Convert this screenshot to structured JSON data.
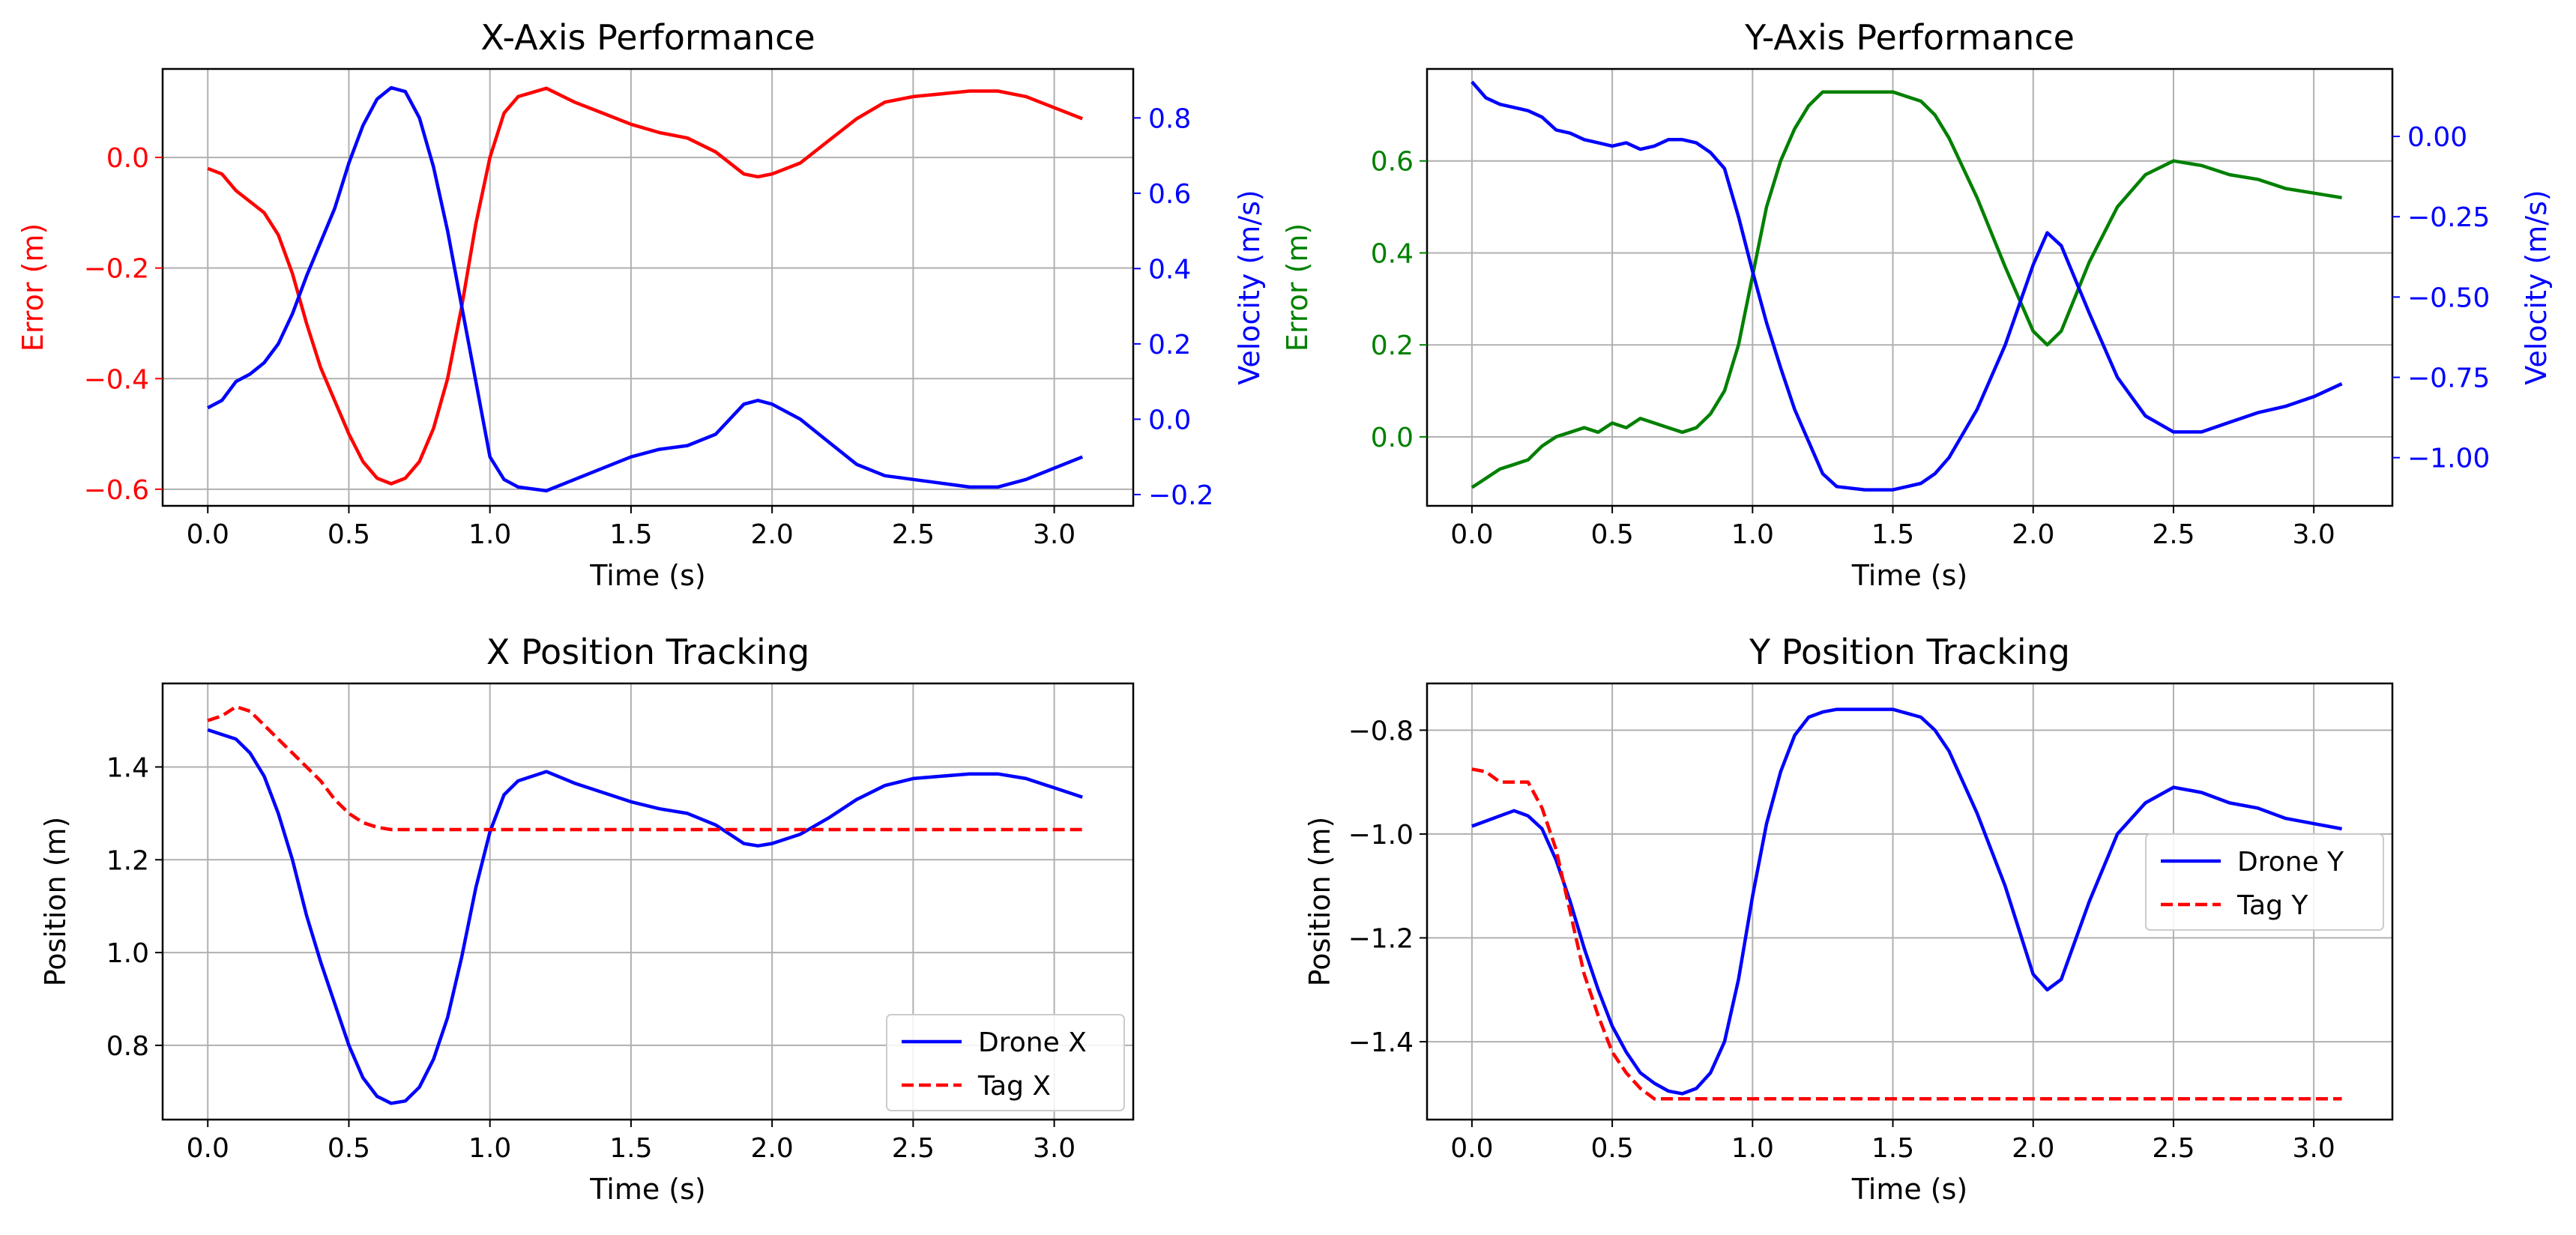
{
  "chart_data": [
    {
      "type": "line",
      "title": "X-Axis Performance",
      "xlabel": "Time (s)",
      "xlim": [
        -0.16,
        3.28
      ],
      "xticks": [
        0.0,
        0.5,
        1.0,
        1.5,
        2.0,
        2.5,
        3.0
      ],
      "xtick_labels": [
        "0.0",
        "0.5",
        "1.0",
        "1.5",
        "2.0",
        "2.5",
        "3.0"
      ],
      "grid": true,
      "y_left": {
        "label": "Error (m)",
        "color": "#ff0000",
        "lim": [
          -0.63,
          0.16
        ],
        "ticks": [
          -0.6,
          -0.4,
          -0.2,
          0.0
        ],
        "tick_labels": [
          "−0.6",
          "−0.4",
          "−0.2",
          "0.0"
        ]
      },
      "y_right": {
        "label": "Velocity (m/s)",
        "color": "#0000ff",
        "lim": [
          -0.23,
          0.93
        ],
        "ticks": [
          -0.2,
          0.0,
          0.2,
          0.4,
          0.6,
          0.8
        ],
        "tick_labels": [
          "−0.2",
          "0.0",
          "0.2",
          "0.4",
          "0.6",
          "0.8"
        ]
      },
      "series": [
        {
          "axis": "left",
          "color": "#ff0000",
          "style": "solid",
          "x": [
            0.0,
            0.05,
            0.1,
            0.15,
            0.2,
            0.25,
            0.3,
            0.35,
            0.4,
            0.45,
            0.5,
            0.55,
            0.6,
            0.65,
            0.7,
            0.75,
            0.8,
            0.85,
            0.9,
            0.95,
            1.0,
            1.05,
            1.1,
            1.2,
            1.3,
            1.4,
            1.5,
            1.6,
            1.7,
            1.8,
            1.9,
            1.95,
            2.0,
            2.1,
            2.2,
            2.3,
            2.4,
            2.5,
            2.6,
            2.7,
            2.8,
            2.9,
            3.0,
            3.1
          ],
          "y": [
            -0.02,
            -0.03,
            -0.06,
            -0.08,
            -0.1,
            -0.14,
            -0.21,
            -0.3,
            -0.38,
            -0.44,
            -0.5,
            -0.55,
            -0.58,
            -0.59,
            -0.58,
            -0.55,
            -0.49,
            -0.4,
            -0.27,
            -0.12,
            0.0,
            0.08,
            0.11,
            0.125,
            0.1,
            0.08,
            0.06,
            0.045,
            0.035,
            0.01,
            -0.03,
            -0.035,
            -0.03,
            -0.01,
            0.03,
            0.07,
            0.1,
            0.11,
            0.115,
            0.12,
            0.12,
            0.11,
            0.09,
            0.07
          ]
        },
        {
          "axis": "right",
          "color": "#0000ff",
          "style": "solid",
          "x": [
            0.0,
            0.05,
            0.1,
            0.15,
            0.2,
            0.25,
            0.3,
            0.35,
            0.4,
            0.45,
            0.5,
            0.55,
            0.6,
            0.65,
            0.7,
            0.75,
            0.8,
            0.85,
            0.9,
            0.95,
            1.0,
            1.05,
            1.1,
            1.2,
            1.3,
            1.4,
            1.5,
            1.6,
            1.7,
            1.8,
            1.9,
            1.95,
            2.0,
            2.1,
            2.2,
            2.3,
            2.4,
            2.5,
            2.6,
            2.7,
            2.8,
            2.9,
            3.0,
            3.1
          ],
          "y": [
            0.03,
            0.05,
            0.1,
            0.12,
            0.15,
            0.2,
            0.28,
            0.38,
            0.47,
            0.56,
            0.68,
            0.78,
            0.85,
            0.88,
            0.87,
            0.8,
            0.67,
            0.5,
            0.3,
            0.1,
            -0.1,
            -0.16,
            -0.18,
            -0.19,
            -0.16,
            -0.13,
            -0.1,
            -0.08,
            -0.07,
            -0.04,
            0.04,
            0.05,
            0.04,
            0.0,
            -0.06,
            -0.12,
            -0.15,
            -0.16,
            -0.17,
            -0.18,
            -0.18,
            -0.16,
            -0.13,
            -0.1
          ]
        }
      ]
    },
    {
      "type": "line",
      "title": "Y-Axis Performance",
      "xlabel": "Time (s)",
      "xlim": [
        -0.16,
        3.28
      ],
      "xticks": [
        0.0,
        0.5,
        1.0,
        1.5,
        2.0,
        2.5,
        3.0
      ],
      "xtick_labels": [
        "0.0",
        "0.5",
        "1.0",
        "1.5",
        "2.0",
        "2.5",
        "3.0"
      ],
      "grid": true,
      "y_left": {
        "label": "Error (m)",
        "color": "#008000",
        "lim": [
          -0.15,
          0.8
        ],
        "ticks": [
          0.0,
          0.2,
          0.4,
          0.6
        ],
        "tick_labels": [
          "0.0",
          "0.2",
          "0.4",
          "0.6"
        ]
      },
      "y_right": {
        "label": "Velocity (m/s)",
        "color": "#0000ff",
        "lim": [
          -1.15,
          0.21
        ],
        "ticks": [
          -1.0,
          -0.75,
          -0.5,
          -0.25,
          0.0
        ],
        "tick_labels": [
          "−1.00",
          "−0.75",
          "−0.50",
          "−0.25",
          "0.00"
        ]
      },
      "series": [
        {
          "axis": "left",
          "color": "#008000",
          "style": "solid",
          "x": [
            0.0,
            0.05,
            0.1,
            0.15,
            0.2,
            0.25,
            0.3,
            0.35,
            0.4,
            0.45,
            0.5,
            0.55,
            0.6,
            0.65,
            0.7,
            0.75,
            0.8,
            0.85,
            0.9,
            0.95,
            1.0,
            1.05,
            1.1,
            1.15,
            1.2,
            1.25,
            1.3,
            1.4,
            1.5,
            1.6,
            1.65,
            1.7,
            1.8,
            1.9,
            2.0,
            2.05,
            2.1,
            2.2,
            2.3,
            2.4,
            2.5,
            2.6,
            2.7,
            2.8,
            2.9,
            3.0,
            3.1
          ],
          "y": [
            -0.11,
            -0.09,
            -0.07,
            -0.06,
            -0.05,
            -0.02,
            0.0,
            0.01,
            0.02,
            0.01,
            0.03,
            0.02,
            0.04,
            0.03,
            0.02,
            0.01,
            0.02,
            0.05,
            0.1,
            0.2,
            0.35,
            0.5,
            0.6,
            0.67,
            0.72,
            0.75,
            0.75,
            0.75,
            0.75,
            0.73,
            0.7,
            0.65,
            0.52,
            0.37,
            0.23,
            0.2,
            0.23,
            0.38,
            0.5,
            0.57,
            0.6,
            0.59,
            0.57,
            0.56,
            0.54,
            0.53,
            0.52
          ]
        },
        {
          "axis": "right",
          "color": "#0000ff",
          "style": "solid",
          "x": [
            0.0,
            0.05,
            0.1,
            0.15,
            0.2,
            0.25,
            0.3,
            0.35,
            0.4,
            0.45,
            0.5,
            0.55,
            0.6,
            0.65,
            0.7,
            0.75,
            0.8,
            0.85,
            0.9,
            0.95,
            1.0,
            1.05,
            1.1,
            1.15,
            1.2,
            1.25,
            1.3,
            1.4,
            1.5,
            1.6,
            1.65,
            1.7,
            1.8,
            1.9,
            2.0,
            2.05,
            2.1,
            2.2,
            2.3,
            2.4,
            2.5,
            2.6,
            2.7,
            2.8,
            2.9,
            3.0,
            3.1
          ],
          "y": [
            0.17,
            0.12,
            0.1,
            0.09,
            0.08,
            0.06,
            0.02,
            0.01,
            -0.01,
            -0.02,
            -0.03,
            -0.02,
            -0.04,
            -0.03,
            -0.01,
            -0.01,
            -0.02,
            -0.05,
            -0.1,
            -0.25,
            -0.42,
            -0.58,
            -0.72,
            -0.85,
            -0.95,
            -1.05,
            -1.09,
            -1.1,
            -1.1,
            -1.08,
            -1.05,
            -1.0,
            -0.85,
            -0.65,
            -0.4,
            -0.3,
            -0.34,
            -0.55,
            -0.75,
            -0.87,
            -0.92,
            -0.92,
            -0.89,
            -0.86,
            -0.84,
            -0.81,
            -0.77
          ]
        }
      ]
    },
    {
      "type": "line",
      "title": "X Position Tracking",
      "xlabel": "Time (s)",
      "ylabel": "Position (m)",
      "xlim": [
        -0.16,
        3.28
      ],
      "ylim": [
        0.64,
        1.58
      ],
      "xticks": [
        0.0,
        0.5,
        1.0,
        1.5,
        2.0,
        2.5,
        3.0
      ],
      "xtick_labels": [
        "0.0",
        "0.5",
        "1.0",
        "1.5",
        "2.0",
        "2.5",
        "3.0"
      ],
      "yticks": [
        0.8,
        1.0,
        1.2,
        1.4
      ],
      "ytick_labels": [
        "0.8",
        "1.0",
        "1.2",
        "1.4"
      ],
      "grid": true,
      "legend": "lower-right",
      "series": [
        {
          "name": "Drone X",
          "color": "#0000ff",
          "style": "solid",
          "x": [
            0.0,
            0.05,
            0.1,
            0.15,
            0.2,
            0.25,
            0.3,
            0.35,
            0.4,
            0.45,
            0.5,
            0.55,
            0.6,
            0.65,
            0.7,
            0.75,
            0.8,
            0.85,
            0.9,
            0.95,
            1.0,
            1.05,
            1.1,
            1.2,
            1.3,
            1.4,
            1.5,
            1.6,
            1.7,
            1.8,
            1.9,
            1.95,
            2.0,
            2.1,
            2.2,
            2.3,
            2.4,
            2.5,
            2.6,
            2.7,
            2.8,
            2.9,
            3.0,
            3.1
          ],
          "y": [
            1.48,
            1.47,
            1.46,
            1.43,
            1.38,
            1.3,
            1.2,
            1.08,
            0.98,
            0.89,
            0.8,
            0.73,
            0.69,
            0.675,
            0.68,
            0.71,
            0.77,
            0.86,
            0.99,
            1.14,
            1.26,
            1.34,
            1.37,
            1.39,
            1.365,
            1.345,
            1.325,
            1.31,
            1.3,
            1.275,
            1.235,
            1.23,
            1.235,
            1.255,
            1.29,
            1.33,
            1.36,
            1.375,
            1.38,
            1.385,
            1.385,
            1.375,
            1.355,
            1.335
          ]
        },
        {
          "name": "Tag X",
          "color": "#ff0000",
          "style": "dashed",
          "x": [
            0.0,
            0.05,
            0.1,
            0.15,
            0.2,
            0.25,
            0.3,
            0.35,
            0.4,
            0.45,
            0.5,
            0.55,
            0.6,
            0.65,
            0.7,
            1.0,
            1.5,
            2.0,
            2.5,
            3.0,
            3.1
          ],
          "y": [
            1.5,
            1.51,
            1.53,
            1.52,
            1.49,
            1.46,
            1.43,
            1.4,
            1.37,
            1.33,
            1.3,
            1.28,
            1.27,
            1.265,
            1.265,
            1.265,
            1.265,
            1.265,
            1.265,
            1.265,
            1.265
          ]
        }
      ]
    },
    {
      "type": "line",
      "title": "Y Position Tracking",
      "xlabel": "Time (s)",
      "ylabel": "Position (m)",
      "xlim": [
        -0.16,
        3.28
      ],
      "ylim": [
        -1.55,
        -0.71
      ],
      "xticks": [
        0.0,
        0.5,
        1.0,
        1.5,
        2.0,
        2.5,
        3.0
      ],
      "xtick_labels": [
        "0.0",
        "0.5",
        "1.0",
        "1.5",
        "2.0",
        "2.5",
        "3.0"
      ],
      "yticks": [
        -1.4,
        -1.2,
        -1.0,
        -0.8
      ],
      "ytick_labels": [
        "−1.4",
        "−1.2",
        "−1.0",
        "−0.8"
      ],
      "grid": true,
      "legend": "center-right",
      "series": [
        {
          "name": "Drone Y",
          "color": "#0000ff",
          "style": "solid",
          "x": [
            0.0,
            0.05,
            0.1,
            0.15,
            0.2,
            0.25,
            0.3,
            0.35,
            0.4,
            0.45,
            0.5,
            0.55,
            0.6,
            0.65,
            0.7,
            0.75,
            0.8,
            0.85,
            0.9,
            0.95,
            1.0,
            1.05,
            1.1,
            1.15,
            1.2,
            1.25,
            1.3,
            1.4,
            1.5,
            1.6,
            1.65,
            1.7,
            1.8,
            1.9,
            2.0,
            2.05,
            2.1,
            2.2,
            2.3,
            2.4,
            2.5,
            2.6,
            2.7,
            2.8,
            2.9,
            3.0,
            3.1
          ],
          "y": [
            -0.985,
            -0.975,
            -0.965,
            -0.955,
            -0.965,
            -0.99,
            -1.05,
            -1.13,
            -1.22,
            -1.3,
            -1.37,
            -1.42,
            -1.46,
            -1.48,
            -1.495,
            -1.5,
            -1.49,
            -1.46,
            -1.4,
            -1.28,
            -1.12,
            -0.98,
            -0.88,
            -0.81,
            -0.775,
            -0.765,
            -0.76,
            -0.76,
            -0.76,
            -0.775,
            -0.8,
            -0.84,
            -0.96,
            -1.1,
            -1.27,
            -1.3,
            -1.28,
            -1.13,
            -1.0,
            -0.94,
            -0.91,
            -0.92,
            -0.94,
            -0.95,
            -0.97,
            -0.98,
            -0.99
          ]
        },
        {
          "name": "Tag Y",
          "color": "#ff0000",
          "style": "dashed",
          "x": [
            0.0,
            0.05,
            0.1,
            0.15,
            0.2,
            0.25,
            0.3,
            0.35,
            0.4,
            0.45,
            0.5,
            0.55,
            0.6,
            0.65,
            0.7,
            1.0,
            1.5,
            2.0,
            2.5,
            3.0,
            3.1
          ],
          "y": [
            -0.875,
            -0.88,
            -0.9,
            -0.9,
            -0.9,
            -0.95,
            -1.03,
            -1.15,
            -1.27,
            -1.35,
            -1.42,
            -1.46,
            -1.49,
            -1.51,
            -1.51,
            -1.51,
            -1.51,
            -1.51,
            -1.51,
            -1.51,
            -1.51
          ]
        }
      ]
    }
  ]
}
